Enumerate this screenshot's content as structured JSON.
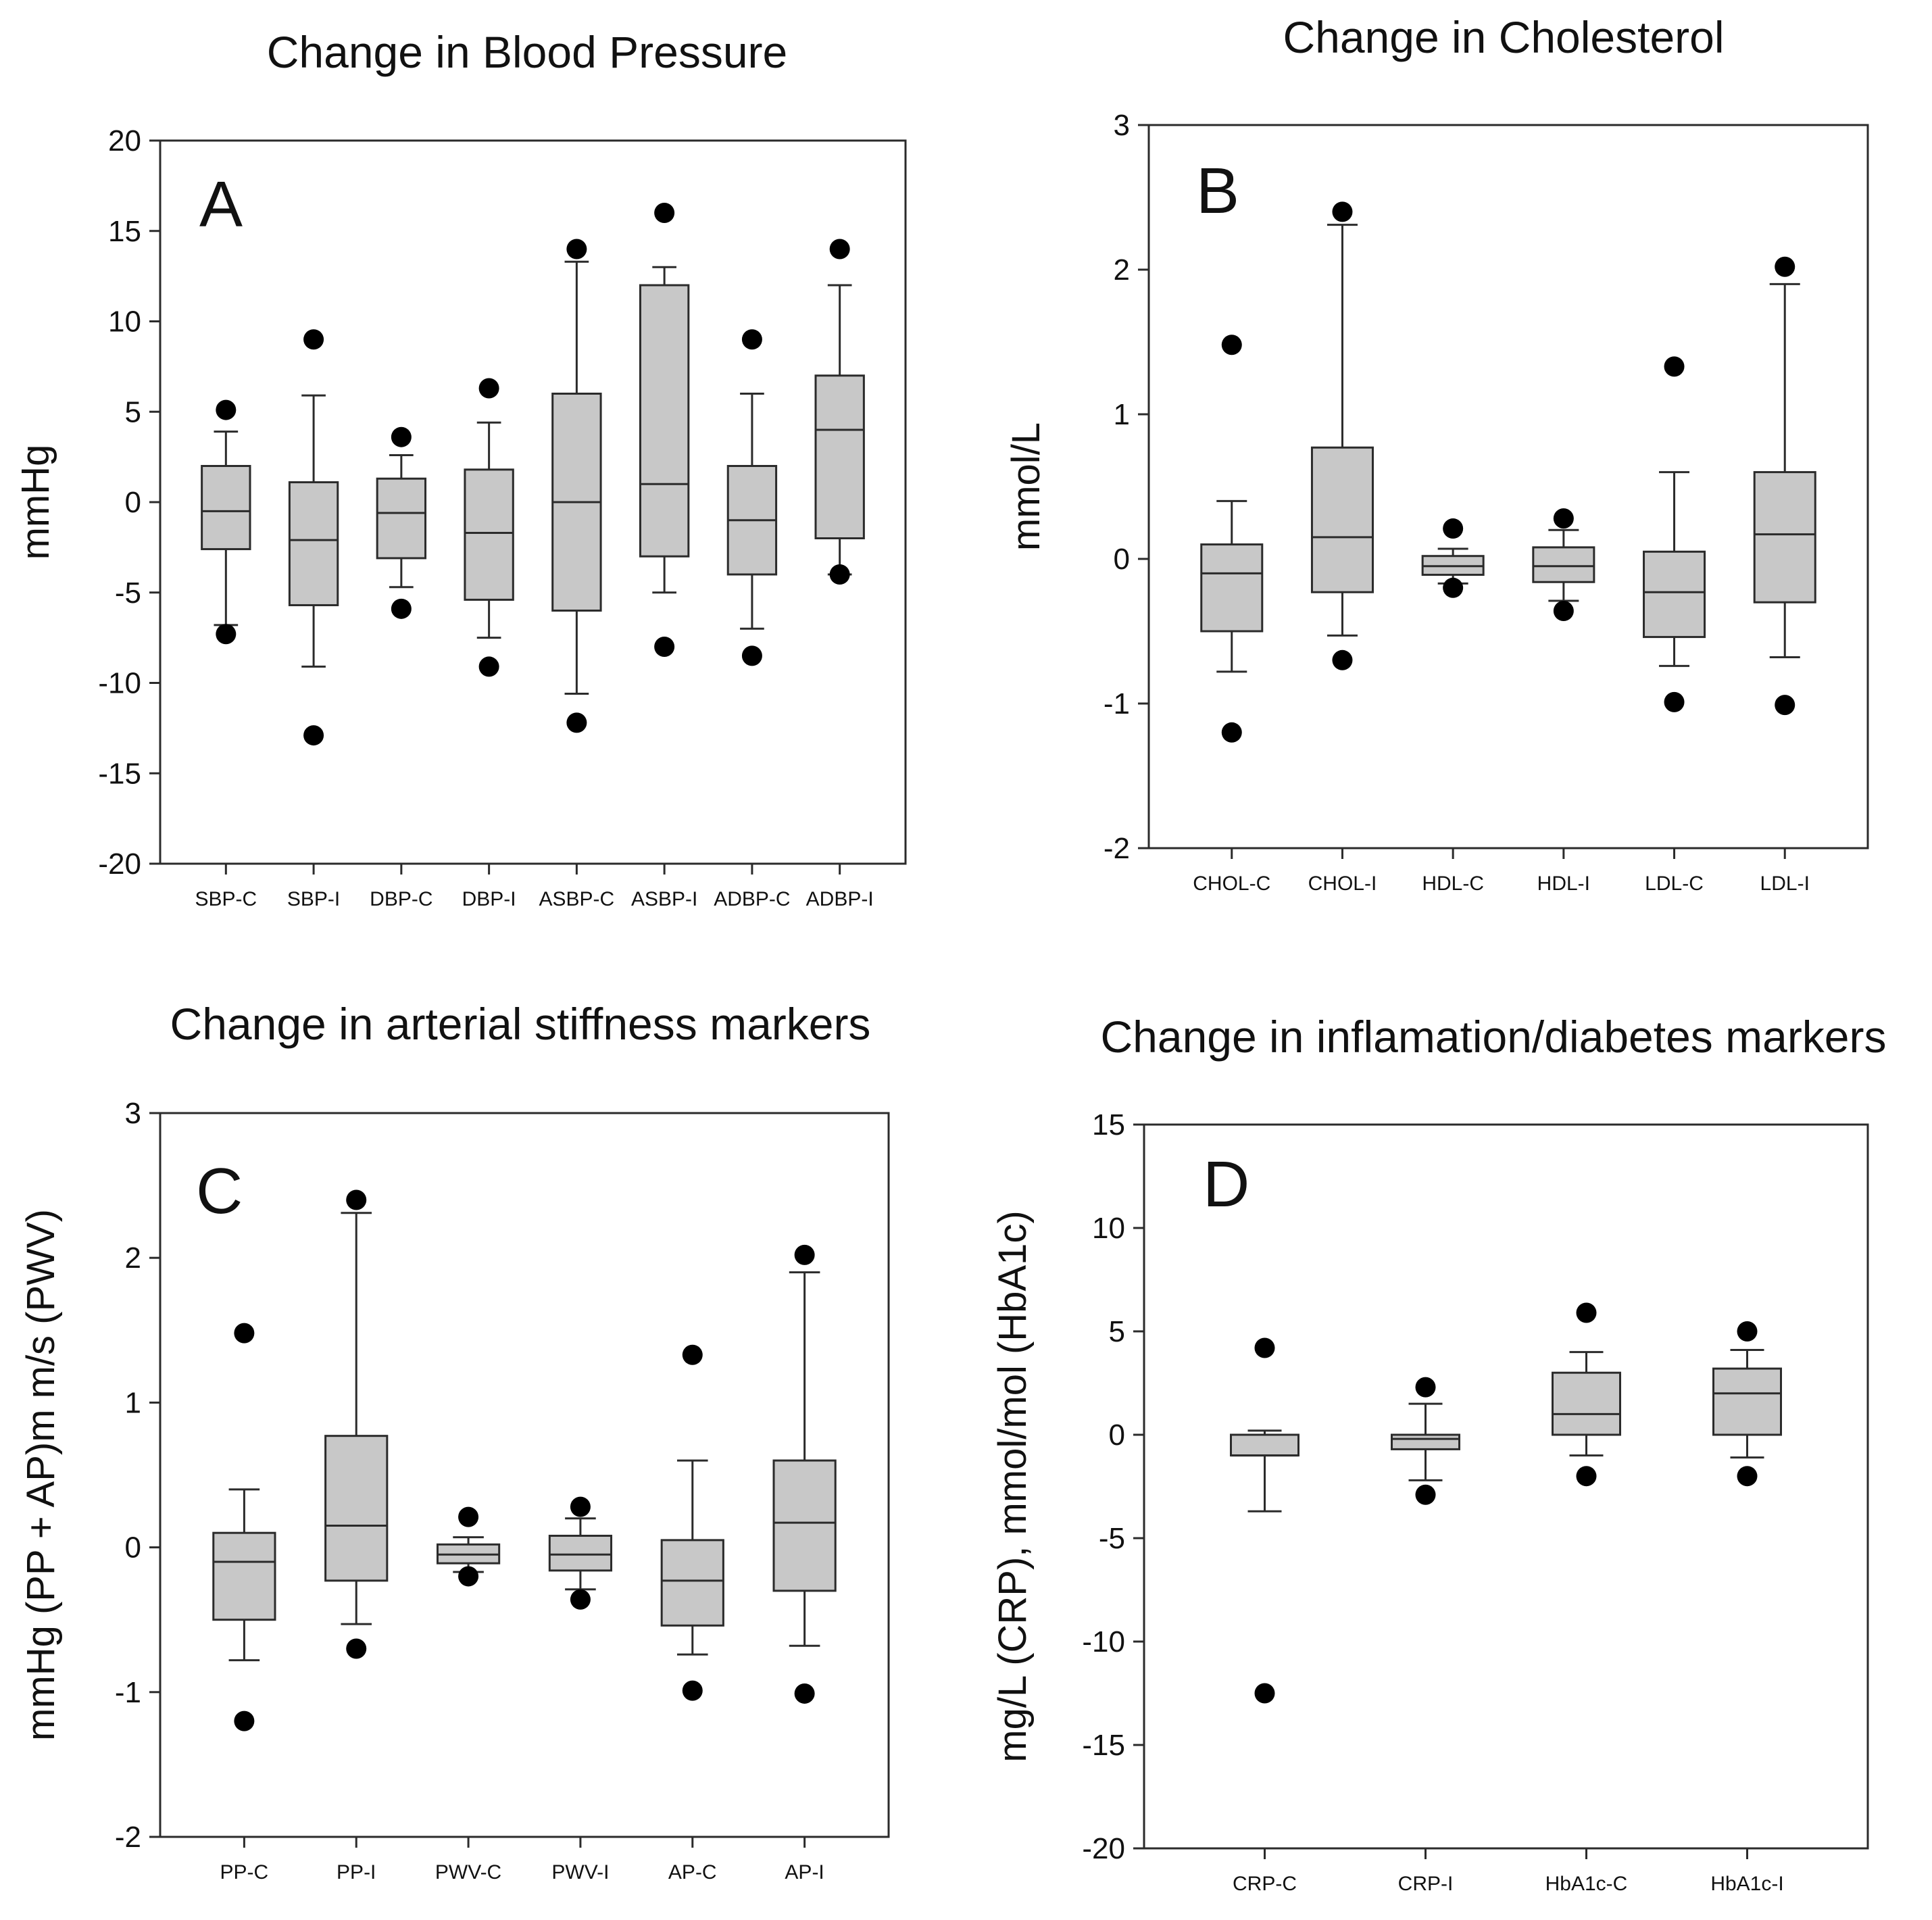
{
  "chart_data": [
    {
      "type": "box",
      "panel": "A",
      "title": "Change in Blood Pressure",
      "ylabel": "mmHg",
      "ylim": [
        -20,
        20
      ],
      "yticks": [
        20,
        15,
        10,
        5,
        0,
        -5,
        -10,
        -15,
        -20
      ],
      "categories": [
        "SBP-C",
        "SBP-I",
        "DBP-C",
        "DBP-I",
        "ASBP-C",
        "ASBP-I",
        "ADBP-C",
        "ADBP-I"
      ],
      "boxes": [
        {
          "whisker_low": -6.8,
          "q1": -2.6,
          "median": -0.5,
          "q3": 2.0,
          "whisker_high": 3.9,
          "outliers": [
            5.1,
            -7.3
          ]
        },
        {
          "whisker_low": -9.1,
          "q1": -5.7,
          "median": -2.1,
          "q3": 1.1,
          "whisker_high": 5.9,
          "outliers": [
            9.0,
            -12.9
          ]
        },
        {
          "whisker_low": -4.7,
          "q1": -3.1,
          "median": -0.6,
          "q3": 1.3,
          "whisker_high": 2.6,
          "outliers": [
            3.6,
            -5.9
          ]
        },
        {
          "whisker_low": -7.5,
          "q1": -5.4,
          "median": -1.7,
          "q3": 1.8,
          "whisker_high": 4.4,
          "outliers": [
            6.3,
            -9.1
          ]
        },
        {
          "whisker_low": -10.6,
          "q1": -6.0,
          "median": 0.0,
          "q3": 6.0,
          "whisker_high": 13.3,
          "outliers": [
            14.0,
            -12.2
          ]
        },
        {
          "whisker_low": -5.0,
          "q1": -3.0,
          "median": 1.0,
          "q3": 12.0,
          "whisker_high": 13.0,
          "outliers": [
            16.0,
            -8.0
          ]
        },
        {
          "whisker_low": -7.0,
          "q1": -4.0,
          "median": -1.0,
          "q3": 2.0,
          "whisker_high": 6.0,
          "outliers": [
            9.0,
            -8.5
          ]
        },
        {
          "whisker_low": -4.0,
          "q1": -2.0,
          "median": 4.0,
          "q3": 7.0,
          "whisker_high": 12.0,
          "outliers": [
            14.0,
            -4.0
          ]
        }
      ]
    },
    {
      "type": "box",
      "panel": "B",
      "title": "Change in Cholesterol",
      "ylabel": "mmol/L",
      "ylim": [
        -2,
        3
      ],
      "yticks": [
        3,
        2,
        1,
        0,
        -1,
        -2
      ],
      "categories": [
        "CHOL-C",
        "CHOL-I",
        "HDL-C",
        "HDL-I",
        "LDL-C",
        "LDL-I"
      ],
      "boxes": [
        {
          "whisker_low": -0.78,
          "q1": -0.5,
          "median": -0.1,
          "q3": 0.1,
          "whisker_high": 0.4,
          "outliers": [
            1.48,
            -1.2
          ]
        },
        {
          "whisker_low": -0.53,
          "q1": -0.23,
          "median": 0.15,
          "q3": 0.77,
          "whisker_high": 2.31,
          "outliers": [
            2.4,
            -0.7
          ]
        },
        {
          "whisker_low": -0.17,
          "q1": -0.11,
          "median": -0.05,
          "q3": 0.02,
          "whisker_high": 0.07,
          "outliers": [
            0.21,
            -0.2
          ]
        },
        {
          "whisker_low": -0.29,
          "q1": -0.16,
          "median": -0.05,
          "q3": 0.08,
          "whisker_high": 0.2,
          "outliers": [
            0.28,
            -0.36
          ]
        },
        {
          "whisker_low": -0.74,
          "q1": -0.54,
          "median": -0.23,
          "q3": 0.05,
          "whisker_high": 0.6,
          "outliers": [
            1.33,
            -0.99
          ]
        },
        {
          "whisker_low": -0.68,
          "q1": -0.3,
          "median": 0.17,
          "q3": 0.6,
          "whisker_high": 1.9,
          "outliers": [
            2.02,
            -1.01
          ]
        }
      ]
    },
    {
      "type": "box",
      "panel": "C",
      "title": "Change in arterial stiffness markers",
      "ylabel": "mmHg (PP + AP)m m/s (PWV)",
      "ylim": [
        -2,
        3
      ],
      "yticks": [
        3,
        2,
        1,
        0,
        -1,
        -2
      ],
      "categories": [
        "PP-C",
        "PP-I",
        "PWV-C",
        "PWV-I",
        "AP-C",
        "AP-I"
      ],
      "boxes": [
        {
          "whisker_low": -0.78,
          "q1": -0.5,
          "median": -0.1,
          "q3": 0.1,
          "whisker_high": 0.4,
          "outliers": [
            1.48,
            -1.2
          ]
        },
        {
          "whisker_low": -0.53,
          "q1": -0.23,
          "median": 0.15,
          "q3": 0.77,
          "whisker_high": 2.31,
          "outliers": [
            2.4,
            -0.7
          ]
        },
        {
          "whisker_low": -0.17,
          "q1": -0.11,
          "median": -0.05,
          "q3": 0.02,
          "whisker_high": 0.07,
          "outliers": [
            0.21,
            -0.2
          ]
        },
        {
          "whisker_low": -0.29,
          "q1": -0.16,
          "median": -0.05,
          "q3": 0.08,
          "whisker_high": 0.2,
          "outliers": [
            0.28,
            -0.36
          ]
        },
        {
          "whisker_low": -0.74,
          "q1": -0.54,
          "median": -0.23,
          "q3": 0.05,
          "whisker_high": 0.6,
          "outliers": [
            1.33,
            -0.99
          ]
        },
        {
          "whisker_low": -0.68,
          "q1": -0.3,
          "median": 0.17,
          "q3": 0.6,
          "whisker_high": 1.9,
          "outliers": [
            2.02,
            -1.01
          ]
        }
      ]
    },
    {
      "type": "box",
      "panel": "D",
      "title": "Change in inflamation/diabetes markers",
      "ylabel": "mg/L (CRP), mmol/mol (HbA1c)",
      "ylim": [
        -20,
        15
      ],
      "yticks": [
        15,
        10,
        5,
        0,
        -5,
        -10,
        -15,
        -20
      ],
      "categories": [
        "CRP-C",
        "CRP-I",
        "HbA1c-C",
        "HbA1c-I"
      ],
      "boxes": [
        {
          "whisker_low": -3.7,
          "q1": -1.0,
          "median": -1.0,
          "q3": 0.0,
          "whisker_high": 0.2,
          "outliers": [
            4.2,
            -12.5
          ]
        },
        {
          "whisker_low": -2.2,
          "q1": -0.7,
          "median": -0.2,
          "q3": 0.0,
          "whisker_high": 1.5,
          "outliers": [
            2.3,
            -2.9
          ]
        },
        {
          "whisker_low": -1.0,
          "q1": 0.0,
          "median": 1.0,
          "q3": 3.0,
          "whisker_high": 4.0,
          "outliers": [
            5.9,
            -2.0
          ]
        },
        {
          "whisker_low": -1.1,
          "q1": 0.0,
          "median": 2.0,
          "q3": 3.2,
          "whisker_high": 4.1,
          "outliers": [
            5.0,
            -2.0
          ]
        }
      ]
    }
  ]
}
